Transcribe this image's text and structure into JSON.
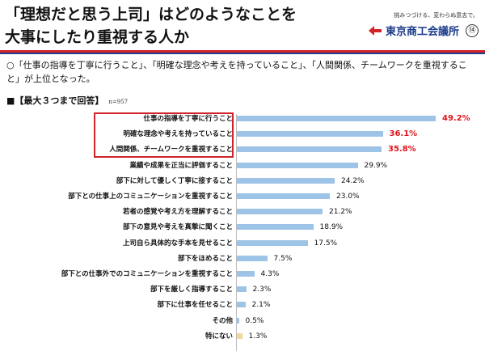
{
  "header": {
    "title_line1": "「理想だと思う上司」はどのようなことを",
    "title_line2": "大事にしたり重視する人か",
    "tagline": "挑みつづける、変わらぬ意志で。",
    "org_name": "東京商工会議所",
    "page_number": "⑭"
  },
  "summary": "○「仕事の指導を丁寧に行うこと」、「明確な理念や考えを持っていること」、「人間関係、チームワークを重視すること」が上位となった。",
  "section": {
    "heading": "■【最大３つまで回答】",
    "sample": "n=957"
  },
  "colors": {
    "bar": "#9dc3e6",
    "bar_none": "#f5d79a",
    "highlight": "#d2232a",
    "brand": "#1a3a8a"
  },
  "chart_data": {
    "type": "bar",
    "orientation": "horizontal",
    "categories": [
      "仕事の指導を丁寧に行うこと",
      "明確な理念や考えを持っていること",
      "人間関係、チームワークを重視すること",
      "業績や成果を正当に評価すること",
      "部下に対して優しく丁寧に接すること",
      "部下との仕事上のコミュニケーションを重視すること",
      "若者の感覚や考え方を理解すること",
      "部下の意見や考えを真摯に聞くこと",
      "上司自ら具体的な手本を見せること",
      "部下をほめること",
      "部下との仕事外でのコミュニケーションを重視すること",
      "部下を厳しく指導すること",
      "部下に仕事を任せること",
      "その他",
      "特にない"
    ],
    "values": [
      49.2,
      36.1,
      35.8,
      29.9,
      24.2,
      23.0,
      21.2,
      18.9,
      17.5,
      7.5,
      4.3,
      2.3,
      2.1,
      0.5,
      1.3
    ],
    "value_labels": [
      "49.2%",
      "36.1%",
      "35.8%",
      "29.9%",
      "24.2%",
      "23.0%",
      "21.2%",
      "18.9%",
      "17.5%",
      "7.5%",
      "4.3%",
      "2.3%",
      "2.1%",
      "0.5%",
      "1.3%"
    ],
    "highlighted_top": 3,
    "xlim": [
      0,
      50
    ],
    "grid": false
  }
}
